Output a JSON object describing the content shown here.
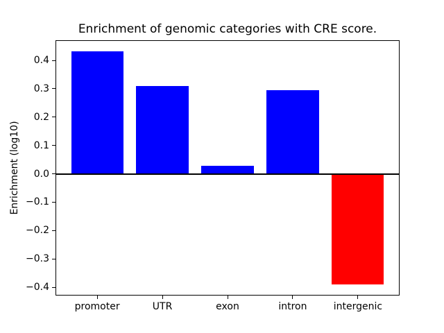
{
  "figure": {
    "background": "#ffffff",
    "axis_color": "#000000"
  },
  "chart_data": {
    "type": "bar",
    "title": "Enrichment of genomic categories with CRE score.",
    "xlabel": "",
    "ylabel": "Enrichment (log10)",
    "categories": [
      "promoter",
      "UTR",
      "exon",
      "intron",
      "intergenic"
    ],
    "values": [
      0.432,
      0.309,
      0.028,
      0.296,
      -0.39
    ],
    "positive_color": "#0000ff",
    "negative_color": "#ff0000",
    "ylim": [
      -0.429,
      0.471
    ],
    "yticks": [
      0.4,
      0.3,
      0.2,
      0.1,
      0.0,
      -0.1,
      -0.2,
      -0.3,
      -0.4
    ],
    "ytick_labels": [
      "0.4",
      "0.3",
      "0.2",
      "0.1",
      "0.0",
      "−0.1",
      "−0.2",
      "−0.3",
      "−0.4"
    ],
    "zero_line": true,
    "grid": false,
    "legend": null
  }
}
